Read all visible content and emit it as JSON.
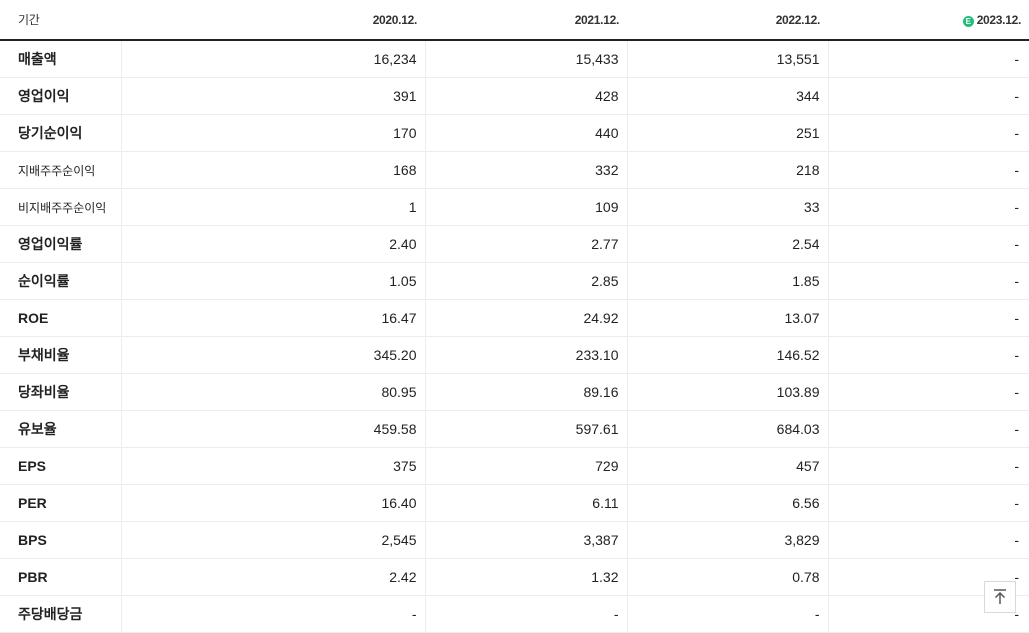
{
  "header": {
    "period_label": "기간",
    "columns": [
      "2020.12.",
      "2021.12.",
      "2022.12.",
      "2023.12."
    ],
    "estimate_badge": "E"
  },
  "rows": [
    {
      "label": "매출액",
      "values": [
        "16,234",
        "15,433",
        "13,551",
        "-"
      ]
    },
    {
      "label": "영업이익",
      "values": [
        "391",
        "428",
        "344",
        "-"
      ]
    },
    {
      "label": "당기순이익",
      "values": [
        "170",
        "440",
        "251",
        "-"
      ]
    },
    {
      "label": "지배주주순이익",
      "values": [
        "168",
        "332",
        "218",
        "-"
      ]
    },
    {
      "label": "비지배주주순이익",
      "values": [
        "1",
        "109",
        "33",
        "-"
      ]
    },
    {
      "label": "영업이익률",
      "values": [
        "2.40",
        "2.77",
        "2.54",
        "-"
      ]
    },
    {
      "label": "순이익률",
      "values": [
        "1.05",
        "2.85",
        "1.85",
        "-"
      ]
    },
    {
      "label": "ROE",
      "values": [
        "16.47",
        "24.92",
        "13.07",
        "-"
      ]
    },
    {
      "label": "부채비율",
      "values": [
        "345.20",
        "233.10",
        "146.52",
        "-"
      ]
    },
    {
      "label": "당좌비율",
      "values": [
        "80.95",
        "89.16",
        "103.89",
        "-"
      ]
    },
    {
      "label": "유보율",
      "values": [
        "459.58",
        "597.61",
        "684.03",
        "-"
      ]
    },
    {
      "label": "EPS",
      "values": [
        "375",
        "729",
        "457",
        "-"
      ]
    },
    {
      "label": "PER",
      "values": [
        "16.40",
        "6.11",
        "6.56",
        "-"
      ]
    },
    {
      "label": "BPS",
      "values": [
        "2,545",
        "3,387",
        "3,829",
        "-"
      ]
    },
    {
      "label": "PBR",
      "values": [
        "2.42",
        "1.32",
        "0.78",
        "-"
      ]
    },
    {
      "label": "주당배당금",
      "values": [
        "-",
        "-",
        "-",
        "-"
      ]
    }
  ],
  "scroll_top_icon": "arrow-up-to-top-icon"
}
